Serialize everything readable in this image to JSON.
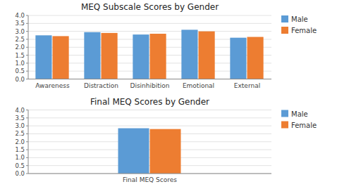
{
  "chart_data": [
    {
      "type": "bar",
      "title": "MEQ Subscale Scores by Gender",
      "categories": [
        "Awareness",
        "Distraction",
        "Disinhibition",
        "Emotional",
        "External"
      ],
      "series": [
        {
          "name": "Male",
          "color": "#5B9BD5",
          "values": [
            2.75,
            2.95,
            2.8,
            3.1,
            2.6
          ]
        },
        {
          "name": "Female",
          "color": "#ED7D31",
          "values": [
            2.7,
            2.9,
            2.85,
            3.0,
            2.65
          ]
        }
      ],
      "ylim": [
        0,
        4
      ],
      "yticks": [
        {
          "value": 0,
          "label": "0.0"
        },
        0.5,
        {
          "value": 1.0,
          "label": "1.0"
        },
        1.5,
        {
          "value": 2.0,
          "label": "2.0"
        },
        2.5,
        {
          "value": 3.0,
          "label": "3.0"
        },
        3.5,
        {
          "value": 4.0,
          "label": "4.0"
        }
      ],
      "grid": true,
      "legend": "right"
    },
    {
      "type": "bar",
      "title": "Final MEQ Scores by Gender",
      "categories": [
        "Final MEQ Scores"
      ],
      "series": [
        {
          "name": "Male",
          "color": "#5B9BD5",
          "values": [
            2.85
          ]
        },
        {
          "name": "Female",
          "color": "#ED7D31",
          "values": [
            2.8
          ]
        }
      ],
      "ylim": [
        0,
        4
      ],
      "yticks": [
        {
          "value": 0,
          "label": "0.0"
        },
        0.5,
        {
          "value": 1.0,
          "label": "1.0"
        },
        1.5,
        {
          "value": 2.0,
          "label": "2.0"
        },
        2.5,
        {
          "value": 3.0,
          "label": "3.0"
        },
        3.5,
        {
          "value": 4.0,
          "label": "4.0"
        }
      ],
      "grid": true,
      "legend": "right"
    }
  ]
}
